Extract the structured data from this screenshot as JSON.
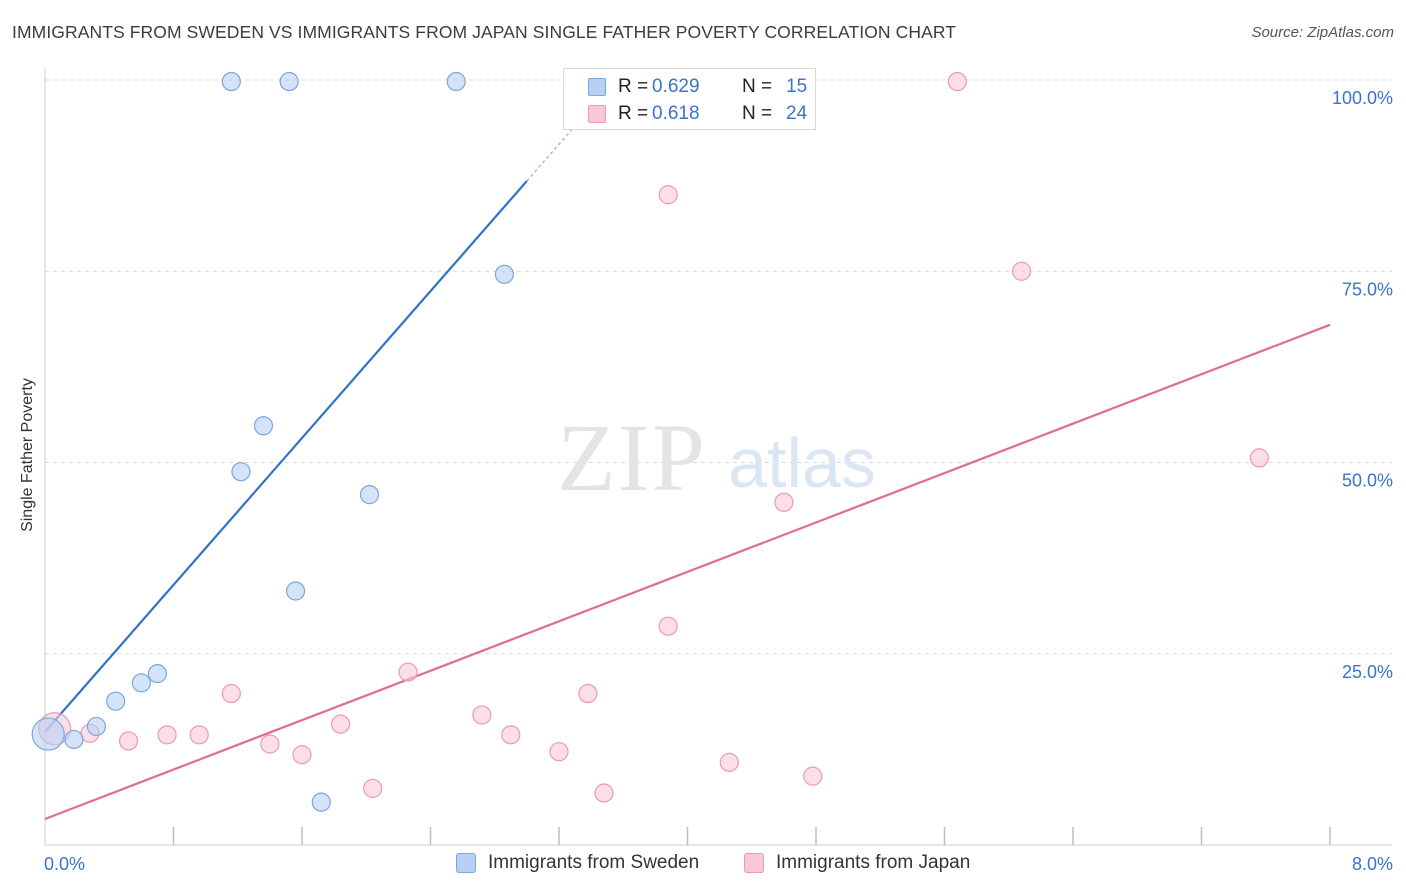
{
  "title": "IMMIGRANTS FROM SWEDEN VS IMMIGRANTS FROM JAPAN SINGLE FATHER POVERTY CORRELATION CHART",
  "source": "Source: ZipAtlas.com",
  "watermark": {
    "zip": "ZIP",
    "atlas": "atlas"
  },
  "legend": {
    "sweden": {
      "r_label": "R =",
      "r_value": "0.629",
      "n_label": "N =",
      "n_value": "15"
    },
    "japan": {
      "r_label": "R =",
      "r_value": "0.618",
      "n_label": "N =",
      "n_value": "24"
    }
  },
  "bottom_legend": {
    "sweden": "Immigrants from Sweden",
    "japan": "Immigrants from Japan"
  },
  "colors": {
    "sweden_fill": "#b7d0f3",
    "sweden_stroke": "#7aa6de",
    "sweden_line": "#3272c8",
    "japan_fill": "#f8c8d7",
    "japan_stroke": "#ea9ab4",
    "japan_line": "#e06b95",
    "tick_text": "#3a74c9",
    "grid": "#d9d9d9"
  },
  "chart_data": {
    "type": "scatter",
    "title": "IMMIGRANTS FROM SWEDEN VS IMMIGRANTS FROM JAPAN SINGLE FATHER POVERTY CORRELATION CHART",
    "xlabel": "",
    "ylabel": "Single Father Poverty",
    "xlim": [
      0,
      8
    ],
    "ylim": [
      0,
      100
    ],
    "x_tick_labels": [
      "0.0%",
      "8.0%"
    ],
    "y_ticks": [
      25,
      50,
      75,
      100
    ],
    "y_tick_labels": [
      "25.0%",
      "50.0%",
      "75.0%",
      "100.0%"
    ],
    "grid": true,
    "series": [
      {
        "name": "Immigrants from Sweden",
        "points": [
          [
            0.02,
            14.5
          ],
          [
            0.18,
            13.8
          ],
          [
            0.32,
            15.5
          ],
          [
            0.44,
            18.8
          ],
          [
            0.6,
            21.2
          ],
          [
            0.7,
            22.4
          ],
          [
            1.16,
            99.8
          ],
          [
            1.52,
            99.8
          ],
          [
            2.56,
            99.8
          ],
          [
            1.22,
            48.8
          ],
          [
            1.36,
            54.8
          ],
          [
            1.56,
            33.2
          ],
          [
            1.72,
            5.6
          ],
          [
            2.02,
            45.8
          ],
          [
            2.86,
            74.6
          ]
        ],
        "sizes": [
          16,
          9,
          9,
          9,
          9,
          9,
          9,
          9,
          9,
          9,
          9,
          9,
          9,
          9,
          9
        ],
        "trend": {
          "x": [
            0,
            3.6
          ],
          "y": [
            14.8,
            101.2
          ],
          "solid_until_x": 3.0
        }
      },
      {
        "name": "Immigrants from Japan",
        "points": [
          [
            0.06,
            15.2
          ],
          [
            0.28,
            14.6
          ],
          [
            0.52,
            13.6
          ],
          [
            0.76,
            14.4
          ],
          [
            0.96,
            14.4
          ],
          [
            1.16,
            19.8
          ],
          [
            1.4,
            13.2
          ],
          [
            1.6,
            11.8
          ],
          [
            1.84,
            15.8
          ],
          [
            2.04,
            7.4
          ],
          [
            2.26,
            22.6
          ],
          [
            2.72,
            17.0
          ],
          [
            2.9,
            14.4
          ],
          [
            3.2,
            12.2
          ],
          [
            3.38,
            19.8
          ],
          [
            3.48,
            6.8
          ],
          [
            3.88,
            28.6
          ],
          [
            3.88,
            85.0
          ],
          [
            4.26,
            10.8
          ],
          [
            4.6,
            44.8
          ],
          [
            4.78,
            9.0
          ],
          [
            5.68,
            99.8
          ],
          [
            6.08,
            75.0
          ],
          [
            7.56,
            50.6
          ]
        ],
        "sizes": [
          16,
          9,
          9,
          9,
          9,
          9,
          9,
          9,
          9,
          9,
          9,
          9,
          9,
          9,
          9,
          9,
          9,
          9,
          9,
          9,
          9,
          9,
          9,
          9
        ],
        "trend": {
          "x": [
            0,
            8
          ],
          "y": [
            3.4,
            68.0
          ]
        }
      }
    ]
  }
}
